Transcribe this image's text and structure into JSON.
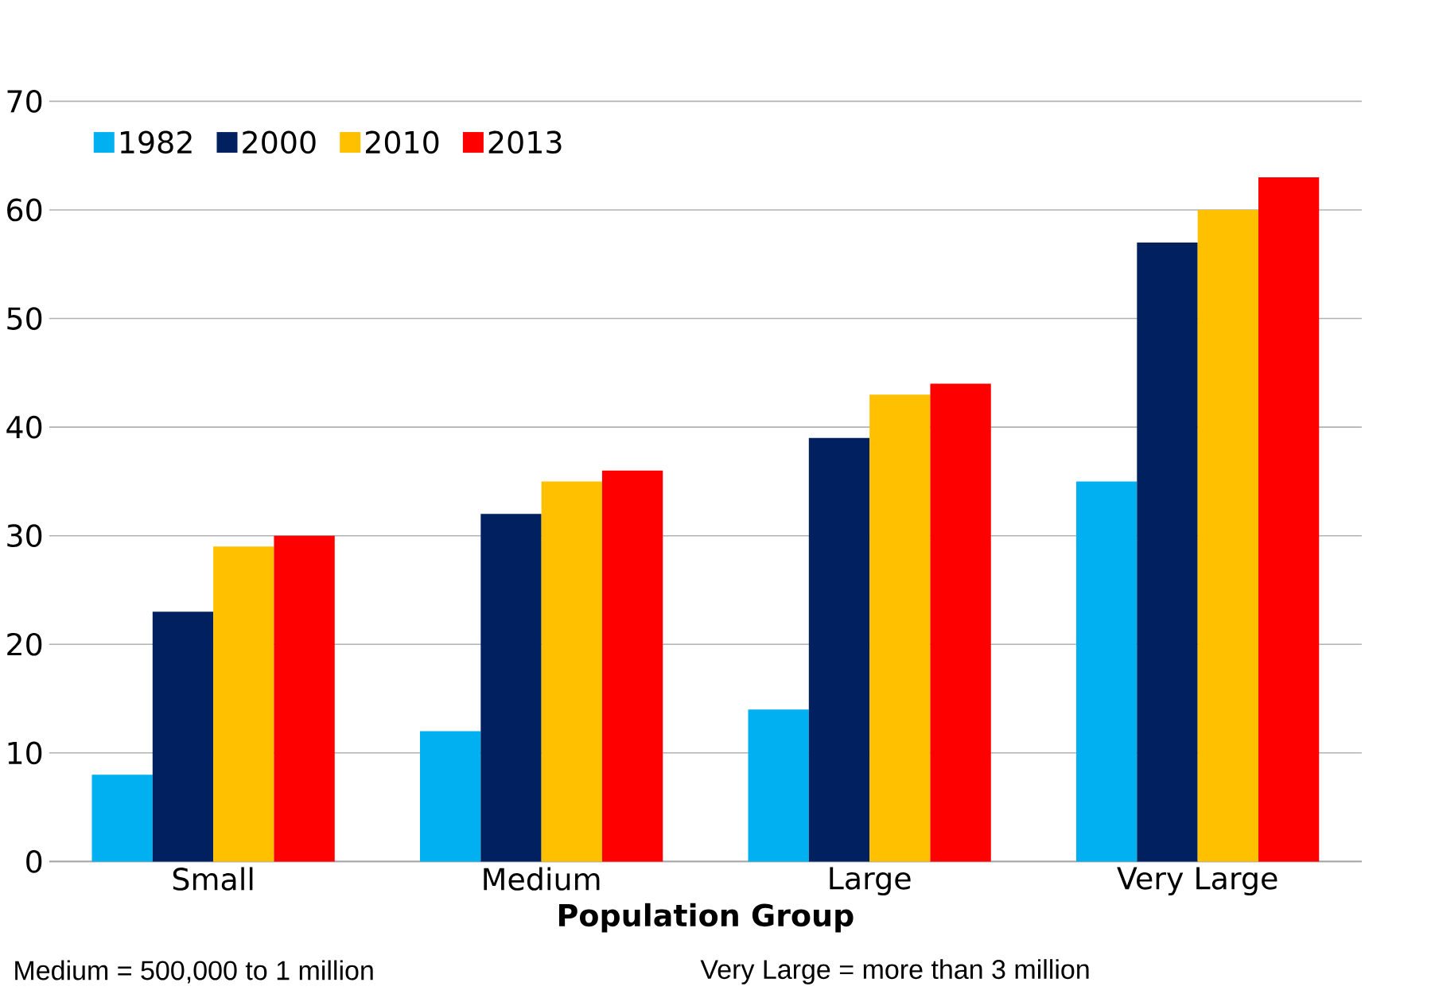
{
  "chart_data": {
    "type": "bar",
    "xlabel": "Population Group",
    "categories": [
      "Small",
      "Medium",
      "Large",
      "Very Large"
    ],
    "series": [
      {
        "name": "1982",
        "color": "#00b0f0",
        "values": [
          8,
          12,
          14,
          35
        ]
      },
      {
        "name": "2000",
        "color": "#002060",
        "values": [
          23,
          32,
          39,
          57
        ]
      },
      {
        "name": "2010",
        "color": "#ffc000",
        "values": [
          29,
          35,
          43,
          60
        ]
      },
      {
        "name": "2013",
        "color": "#ff0000",
        "values": [
          30,
          36,
          44,
          63
        ]
      }
    ],
    "ylim": [
      0,
      70
    ],
    "yticks": [
      0,
      10,
      20,
      30,
      40,
      50,
      60,
      70
    ],
    "grid": "y",
    "legend": "top left",
    "annotations": [
      "Medium = 500,000 to 1 million",
      "Very Large = more than 3 million"
    ]
  }
}
